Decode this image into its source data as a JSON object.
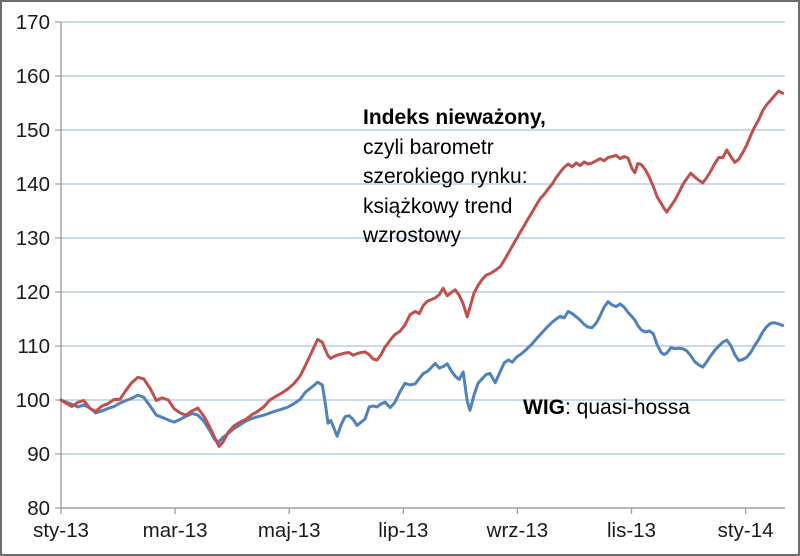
{
  "chart_data": {
    "type": "line",
    "title": "",
    "grid": true,
    "legend": "none",
    "x_axis": {
      "tick_labels": [
        "sty-13",
        "mar-13",
        "maj-13",
        "lip-13",
        "wrz-13",
        "lis-13",
        "sty-14"
      ],
      "tick_positions_months": [
        0,
        2,
        4,
        6,
        8,
        10,
        12
      ],
      "unit": "months since Jan 2013"
    },
    "y_axis": {
      "min": 80,
      "max": 170,
      "step": 10,
      "tick_labels": [
        "80",
        "90",
        "100",
        "110",
        "120",
        "130",
        "140",
        "150",
        "160",
        "170"
      ]
    },
    "x_months": [
      0,
      0.09,
      0.19,
      0.3,
      0.4,
      0.51,
      0.61,
      0.72,
      0.82,
      0.93,
      1.03,
      1.14,
      1.24,
      1.35,
      1.45,
      1.56,
      1.67,
      1.77,
      1.88,
      1.98,
      2.09,
      2.19,
      2.3,
      2.4,
      2.51,
      2.61,
      2.7,
      2.77,
      2.84,
      2.93,
      3.03,
      3.14,
      3.24,
      3.35,
      3.45,
      3.56,
      3.66,
      3.77,
      3.87,
      3.98,
      4.08,
      4.19,
      4.29,
      4.4,
      4.5,
      4.58,
      4.63,
      4.68,
      4.73,
      4.79,
      4.84,
      4.91,
      4.98,
      5.05,
      5.12,
      5.19,
      5.26,
      5.33,
      5.4,
      5.47,
      5.54,
      5.61,
      5.68,
      5.77,
      5.85,
      5.94,
      6.03,
      6.12,
      6.21,
      6.28,
      6.35,
      6.42,
      6.49,
      6.56,
      6.63,
      6.7,
      6.77,
      6.84,
      6.91,
      6.98,
      7.05,
      7.12,
      7.17,
      7.24,
      7.31,
      7.38,
      7.45,
      7.52,
      7.61,
      7.7,
      7.77,
      7.84,
      7.91,
      7.98,
      8.05,
      8.12,
      8.19,
      8.26,
      8.33,
      8.4,
      8.47,
      8.54,
      8.61,
      8.68,
      8.75,
      8.82,
      8.89,
      8.96,
      9.03,
      9.1,
      9.17,
      9.24,
      9.31,
      9.38,
      9.45,
      9.52,
      9.59,
      9.66,
      9.73,
      9.8,
      9.87,
      9.94,
      10.01,
      10.06,
      10.11,
      10.17,
      10.24,
      10.31,
      10.38,
      10.45,
      10.52,
      10.57,
      10.62,
      10.69,
      10.76,
      10.83,
      10.9,
      10.97,
      11.04,
      11.11,
      11.18,
      11.25,
      11.32,
      11.39,
      11.46,
      11.53,
      11.6,
      11.67,
      11.74,
      11.81,
      11.88,
      11.95,
      12.02,
      12.09,
      12.16,
      12.23,
      12.3,
      12.37,
      12.44,
      12.51,
      12.58,
      12.65
    ],
    "series": [
      {
        "name": "Indeks nieważony",
        "color": "#C0504D",
        "values": [
          100.0,
          99.4,
          98.8,
          99.6,
          99.9,
          98.4,
          97.9,
          98.9,
          99.3,
          100.1,
          100.1,
          101.8,
          103.2,
          104.2,
          103.9,
          102.2,
          99.9,
          100.4,
          100.0,
          98.4,
          97.6,
          97.2,
          98.0,
          98.5,
          96.9,
          94.9,
          92.9,
          91.4,
          92.2,
          94.0,
          95.2,
          95.9,
          96.4,
          97.3,
          97.9,
          98.8,
          100.0,
          100.7,
          101.3,
          102.1,
          103.0,
          104.4,
          106.5,
          109.0,
          111.2,
          110.7,
          109.4,
          108.2,
          107.7,
          108.1,
          108.3,
          108.5,
          108.7,
          108.8,
          108.3,
          108.6,
          108.8,
          108.9,
          108.4,
          107.6,
          107.4,
          108.4,
          109.8,
          111.1,
          112.1,
          112.7,
          113.9,
          115.8,
          116.4,
          116.0,
          117.5,
          118.3,
          118.6,
          118.9,
          119.5,
          120.7,
          119.3,
          119.9,
          120.4,
          119.4,
          117.8,
          115.4,
          117.2,
          119.8,
          121.2,
          122.3,
          123.1,
          123.4,
          124.0,
          124.7,
          125.9,
          127.2,
          128.5,
          129.8,
          131.1,
          132.3,
          133.6,
          134.8,
          136.1,
          137.3,
          138.1,
          139.1,
          140.0,
          141.2,
          142.2,
          143.1,
          143.7,
          143.2,
          143.9,
          143.4,
          144.1,
          143.7,
          143.9,
          144.3,
          144.7,
          144.3,
          144.9,
          145.1,
          145.3,
          144.7,
          145.1,
          144.8,
          142.8,
          142.1,
          143.8,
          143.6,
          142.7,
          141.3,
          139.6,
          137.6,
          136.4,
          135.5,
          134.8,
          135.9,
          137.0,
          138.4,
          139.9,
          141.0,
          142.0,
          141.3,
          140.7,
          140.2,
          141.2,
          142.4,
          143.8,
          144.9,
          144.9,
          146.3,
          145.1,
          144.0,
          144.6,
          145.8,
          147.2,
          149.0,
          150.6,
          151.9,
          153.6,
          154.7,
          155.5,
          156.4,
          157.2,
          156.8
        ]
      },
      {
        "name": "WIG",
        "color": "#4F81BD",
        "values": [
          100.0,
          99.6,
          99.2,
          98.7,
          99.1,
          98.5,
          97.6,
          98.0,
          98.4,
          98.8,
          99.4,
          99.9,
          100.3,
          100.9,
          100.5,
          98.9,
          97.2,
          96.8,
          96.3,
          95.9,
          96.4,
          97.0,
          97.5,
          97.2,
          96.0,
          94.3,
          92.6,
          92.3,
          93.1,
          93.8,
          94.7,
          95.4,
          96.1,
          96.6,
          96.9,
          97.2,
          97.6,
          98.0,
          98.3,
          98.7,
          99.3,
          100.1,
          101.5,
          102.4,
          103.3,
          102.8,
          99.6,
          95.7,
          96.2,
          94.6,
          93.3,
          95.4,
          96.9,
          97.1,
          96.4,
          95.3,
          95.9,
          96.5,
          98.7,
          98.9,
          98.7,
          99.3,
          99.6,
          98.6,
          99.5,
          101.5,
          103.1,
          102.8,
          103.0,
          104.0,
          104.9,
          105.3,
          106.0,
          106.8,
          105.9,
          106.2,
          106.7,
          105.4,
          104.4,
          103.8,
          105.2,
          99.8,
          98.1,
          100.9,
          103.1,
          103.9,
          104.7,
          104.9,
          103.2,
          105.3,
          106.9,
          107.4,
          107.0,
          107.9,
          108.4,
          109.0,
          109.7,
          110.4,
          111.3,
          112.1,
          112.9,
          113.7,
          114.4,
          115.0,
          115.5,
          115.2,
          116.4,
          116.0,
          115.4,
          114.8,
          114.0,
          113.5,
          113.4,
          114.2,
          115.6,
          117.2,
          118.2,
          117.6,
          117.3,
          117.8,
          117.2,
          116.2,
          115.4,
          114.8,
          113.8,
          113.0,
          112.6,
          112.8,
          112.3,
          110.2,
          108.8,
          108.4,
          108.7,
          109.7,
          109.5,
          109.6,
          109.5,
          109.1,
          108.2,
          107.1,
          106.5,
          106.1,
          107.1,
          108.2,
          109.2,
          110.0,
          110.7,
          111.1,
          110.1,
          108.4,
          107.3,
          107.5,
          107.9,
          108.8,
          110.1,
          111.2,
          112.6,
          113.6,
          114.2,
          114.3,
          114.1,
          113.8
        ]
      }
    ],
    "annotations": [
      {
        "lines": [
          "Indeks nieważony,",
          "czyli barometr",
          "szerokiego rynku:",
          "książkowy trend",
          "wzrostowy"
        ],
        "bold_first_line": true
      },
      {
        "bold_text": "WIG",
        "regular_text": ": quasi-hossa"
      }
    ],
    "colors": {
      "gridline": "#b9cde5",
      "axis": "#a0a0a0",
      "tick": "#a0a0a0",
      "label_text": "#1a1a1a",
      "background": "#ffffff",
      "frame_border": "#6e6e6e"
    }
  }
}
